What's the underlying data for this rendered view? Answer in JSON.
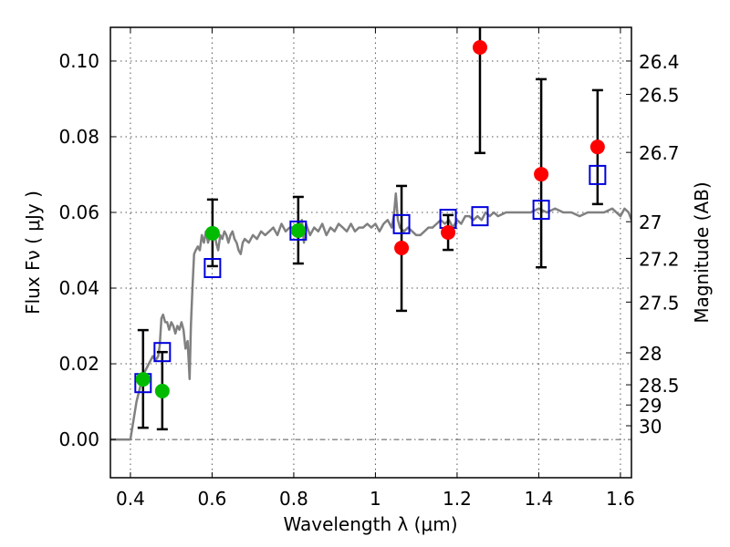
{
  "chart_data": {
    "type": "scatter",
    "title": "",
    "xlabel": "Wavelength  λ (μm)",
    "ylabel": "Flux  Fν  ( μJy )",
    "y2label": "Magnitude (AB)",
    "xlim": [
      0.351,
      1.627
    ],
    "ylim": [
      -0.0101,
      0.1089
    ],
    "grid": true,
    "x_ticks": [
      {
        "value": 0.4,
        "label": "0.4"
      },
      {
        "value": 0.6,
        "label": "0.6"
      },
      {
        "value": 0.8,
        "label": "0.8"
      },
      {
        "value": 1.0,
        "label": "1"
      },
      {
        "value": 1.2,
        "label": "1.2"
      },
      {
        "value": 1.4,
        "label": "1.4"
      },
      {
        "value": 1.6,
        "label": "1.6"
      }
    ],
    "y_ticks": [
      {
        "value": 0.0,
        "label": "0.00"
      },
      {
        "value": 0.02,
        "label": "0.02"
      },
      {
        "value": 0.04,
        "label": "0.04"
      },
      {
        "value": 0.06,
        "label": "0.06"
      },
      {
        "value": 0.08,
        "label": "0.08"
      },
      {
        "value": 0.1,
        "label": "0.10"
      }
    ],
    "y2_ticks": [
      {
        "mag": 26.4,
        "label": "26.4"
      },
      {
        "mag": 26.5,
        "label": "26.5"
      },
      {
        "mag": 26.7,
        "label": "26.7"
      },
      {
        "mag": 27.0,
        "label": "27"
      },
      {
        "mag": 27.2,
        "label": "27.2"
      },
      {
        "mag": 27.5,
        "label": "27.5"
      },
      {
        "mag": 28.0,
        "label": "28"
      },
      {
        "mag": 28.5,
        "label": "28.5"
      },
      {
        "mag": 29.0,
        "label": "29"
      },
      {
        "mag": 30.0,
        "label": "30"
      }
    ],
    "ab_zeropoint_ujy": 23.9,
    "colors": {
      "model": "#808080",
      "green_points": "#00bb00",
      "red_points": "#ff0000",
      "squares": "#0000dd",
      "errorbars": "#000000",
      "grid": "#555555"
    },
    "series": [
      {
        "name": "model_spectrum",
        "type": "line",
        "x": [
          0.351,
          0.4,
          0.415,
          0.431,
          0.445,
          0.455,
          0.462,
          0.468,
          0.472,
          0.476,
          0.48,
          0.485,
          0.49,
          0.495,
          0.5,
          0.505,
          0.51,
          0.515,
          0.52,
          0.525,
          0.53,
          0.535,
          0.54,
          0.545,
          0.548,
          0.552,
          0.556,
          0.56,
          0.565,
          0.57,
          0.575,
          0.58,
          0.585,
          0.59,
          0.595,
          0.6,
          0.605,
          0.61,
          0.615,
          0.62,
          0.625,
          0.63,
          0.635,
          0.64,
          0.645,
          0.65,
          0.655,
          0.66,
          0.665,
          0.67,
          0.675,
          0.68,
          0.69,
          0.7,
          0.71,
          0.72,
          0.73,
          0.74,
          0.75,
          0.76,
          0.77,
          0.78,
          0.79,
          0.8,
          0.81,
          0.82,
          0.825,
          0.83,
          0.84,
          0.85,
          0.86,
          0.87,
          0.88,
          0.89,
          0.9,
          0.91,
          0.92,
          0.93,
          0.94,
          0.95,
          0.96,
          0.97,
          0.98,
          0.99,
          1.0,
          1.01,
          1.02,
          1.03,
          1.04,
          1.045,
          1.05,
          1.055,
          1.06,
          1.07,
          1.08,
          1.09,
          1.1,
          1.11,
          1.12,
          1.13,
          1.14,
          1.15,
          1.16,
          1.17,
          1.18,
          1.19,
          1.2,
          1.21,
          1.22,
          1.23,
          1.24,
          1.25,
          1.26,
          1.27,
          1.28,
          1.29,
          1.3,
          1.32,
          1.34,
          1.36,
          1.38,
          1.4,
          1.42,
          1.44,
          1.46,
          1.48,
          1.5,
          1.52,
          1.54,
          1.56,
          1.58,
          1.6,
          1.61,
          1.62,
          1.627
        ],
        "y": [
          0.0,
          0.0,
          0.01,
          0.017,
          0.02,
          0.022,
          0.021,
          0.022,
          0.025,
          0.032,
          0.033,
          0.031,
          0.031,
          0.029,
          0.031,
          0.03,
          0.028,
          0.03,
          0.029,
          0.031,
          0.029,
          0.024,
          0.026,
          0.016,
          0.03,
          0.04,
          0.049,
          0.05,
          0.051,
          0.05,
          0.054,
          0.052,
          0.055,
          0.052,
          0.054,
          0.055,
          0.055,
          0.052,
          0.05,
          0.054,
          0.053,
          0.055,
          0.054,
          0.052,
          0.054,
          0.055,
          0.053,
          0.052,
          0.05,
          0.049,
          0.052,
          0.053,
          0.052,
          0.054,
          0.053,
          0.055,
          0.054,
          0.055,
          0.056,
          0.054,
          0.057,
          0.055,
          0.056,
          0.056,
          0.056,
          0.058,
          0.052,
          0.057,
          0.054,
          0.056,
          0.055,
          0.057,
          0.054,
          0.056,
          0.055,
          0.057,
          0.056,
          0.055,
          0.057,
          0.055,
          0.056,
          0.056,
          0.057,
          0.056,
          0.057,
          0.055,
          0.057,
          0.058,
          0.056,
          0.059,
          0.065,
          0.058,
          0.056,
          0.055,
          0.056,
          0.055,
          0.054,
          0.054,
          0.055,
          0.056,
          0.056,
          0.057,
          0.058,
          0.057,
          0.058,
          0.056,
          0.058,
          0.057,
          0.059,
          0.059,
          0.058,
          0.059,
          0.058,
          0.06,
          0.059,
          0.06,
          0.059,
          0.06,
          0.06,
          0.06,
          0.06,
          0.061,
          0.06,
          0.061,
          0.06,
          0.06,
          0.059,
          0.06,
          0.06,
          0.06,
          0.061,
          0.059,
          0.061,
          0.06,
          0.058
        ]
      },
      {
        "name": "model_photometry",
        "marker": "open-square",
        "x": [
          0.431,
          0.478,
          0.601,
          0.811,
          1.064,
          1.178,
          1.256,
          1.406,
          1.544
        ],
        "y": [
          0.0149,
          0.0231,
          0.0453,
          0.0552,
          0.0569,
          0.0583,
          0.059,
          0.0607,
          0.0699
        ]
      },
      {
        "name": "observed_optical",
        "marker": "filled-circle",
        "color_key": "green_points",
        "x": [
          0.431,
          0.478,
          0.601,
          0.811
        ],
        "y": [
          0.0159,
          0.0128,
          0.0545,
          0.0552
        ],
        "yerr_low": [
          0.0031,
          0.0027,
          0.0458,
          0.0465
        ],
        "yerr_high": [
          0.0289,
          0.0231,
          0.0634,
          0.0641
        ]
      },
      {
        "name": "observed_nir",
        "marker": "filled-circle",
        "color_key": "red_points",
        "x": [
          1.064,
          1.178,
          1.256,
          1.406,
          1.544
        ],
        "y": [
          0.0506,
          0.0547,
          0.1036,
          0.0701,
          0.0773
        ],
        "yerr_low": [
          0.034,
          0.0501,
          0.0757,
          0.0455,
          0.0622
        ],
        "yerr_high": [
          0.067,
          0.0593,
          0.13,
          0.0952,
          0.0923
        ]
      }
    ]
  }
}
